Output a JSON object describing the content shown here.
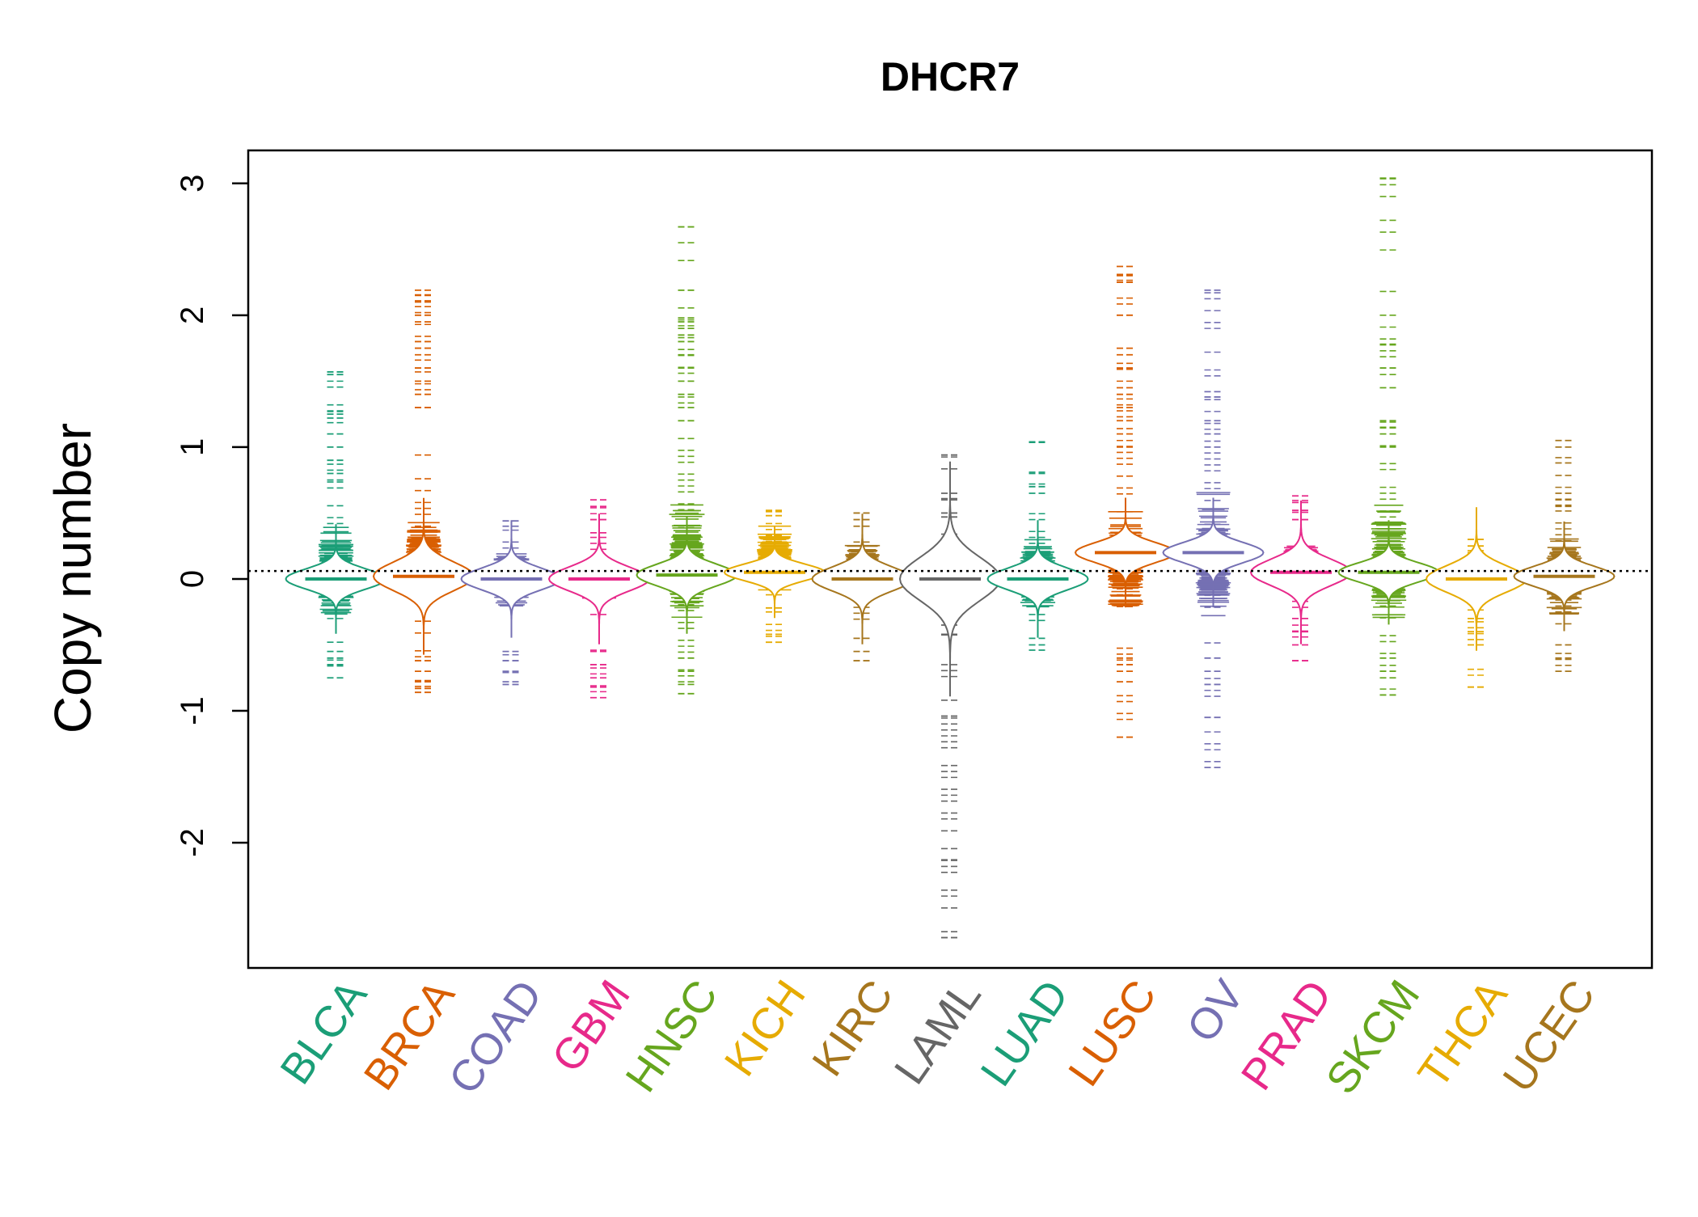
{
  "chart_data": {
    "type": "beanplot",
    "title": "DHCR7",
    "xlabel": "",
    "ylabel": "Copy number",
    "ylim": [
      -2.95,
      3.25
    ],
    "y_ticks": [
      -2,
      -1,
      0,
      1,
      2,
      3
    ],
    "y_tick_labels": [
      "-2",
      "-1",
      "0",
      "1",
      "2",
      "3"
    ],
    "reference_line": 0.06,
    "grid": false,
    "legend": "none",
    "categories": [
      "BLCA",
      "BRCA",
      "COAD",
      "GBM",
      "HNSC",
      "KICH",
      "KIRC",
      "LAML",
      "LUAD",
      "LUSC",
      "OV",
      "PRAD",
      "SKCM",
      "THCA",
      "UCEC"
    ],
    "series": [
      {
        "name": "BLCA",
        "color": "#1b9e77",
        "min": -0.75,
        "max": 1.57,
        "median": 0.0,
        "q1": -0.25,
        "q3": 0.38,
        "spread": 0.42,
        "outliers": [
          1.57,
          1.55,
          1.27,
          1.25,
          1.22,
          1.1,
          1.0,
          0.9,
          0.8,
          0.75,
          -0.55,
          -0.6,
          -0.65,
          -0.75
        ]
      },
      {
        "name": "BRCA",
        "color": "#d95f02",
        "min": -0.86,
        "max": 2.19,
        "median": 0.02,
        "q1": -0.15,
        "q3": 0.42,
        "spread": 0.6,
        "outliers": [
          2.19,
          2.15,
          2.1,
          2.0,
          1.95,
          1.8,
          1.75,
          1.7,
          1.6,
          1.5,
          1.4,
          1.3,
          -0.62,
          -0.7,
          -0.78,
          -0.83,
          -0.86
        ]
      },
      {
        "name": "COAD",
        "color": "#7570b3",
        "min": -0.8,
        "max": 0.44,
        "median": 0.0,
        "q1": -0.18,
        "q3": 0.2,
        "spread": 0.45,
        "outliers": [
          0.44,
          0.4,
          -0.55,
          -0.62,
          -0.7,
          -0.78,
          -0.8
        ]
      },
      {
        "name": "GBM",
        "color": "#e7298a",
        "min": -0.9,
        "max": 0.6,
        "median": 0.0,
        "q1": -0.12,
        "q3": 0.08,
        "spread": 0.5,
        "outliers": [
          0.6,
          0.55,
          0.45,
          0.35,
          -0.55,
          -0.65,
          -0.75,
          -0.82,
          -0.9
        ]
      },
      {
        "name": "HNSC",
        "color": "#66a61e",
        "min": -0.87,
        "max": 2.67,
        "median": 0.03,
        "q1": -0.25,
        "q3": 0.5,
        "spread": 0.45,
        "outliers": [
          2.67,
          2.19,
          1.98,
          1.95,
          1.9,
          1.85,
          1.8,
          1.7,
          1.6,
          1.5,
          1.4,
          1.3,
          1.2,
          -0.6,
          -0.7,
          -0.8,
          -0.87
        ]
      },
      {
        "name": "KICH",
        "color": "#e6ab02",
        "min": -0.48,
        "max": 0.52,
        "median": 0.05,
        "q1": -0.05,
        "q3": 0.35,
        "spread": 0.35,
        "outliers": [
          0.52,
          0.48,
          -0.22,
          -0.25,
          -0.42,
          -0.48
        ]
      },
      {
        "name": "KIRC",
        "color": "#a6761d",
        "min": -0.62,
        "max": 0.5,
        "median": 0.0,
        "q1": -0.1,
        "q3": 0.25,
        "spread": 0.5,
        "outliers": [
          0.5,
          0.45,
          0.4,
          -0.45,
          -0.55,
          -0.62
        ]
      },
      {
        "name": "LAML",
        "color": "#666666",
        "min": -2.72,
        "max": 0.94,
        "median": 0.0,
        "q1": -0.05,
        "q3": 0.08,
        "spread": 0.9,
        "outliers": [
          0.94,
          0.65,
          0.6,
          0.5,
          0.47,
          -0.35,
          -0.42,
          -1.04,
          -2.13,
          -2.72
        ]
      },
      {
        "name": "LUAD",
        "color": "#1b9e77",
        "min": -0.54,
        "max": 1.04,
        "median": 0.0,
        "q1": -0.2,
        "q3": 0.3,
        "spread": 0.45,
        "outliers": [
          1.04,
          0.8,
          0.7,
          0.65,
          -0.45,
          -0.5,
          -0.54
        ]
      },
      {
        "name": "LUSC",
        "color": "#d95f02",
        "min": -1.2,
        "max": 2.37,
        "median": 0.2,
        "q1": -0.25,
        "q3": 0.45,
        "spread": 0.42,
        "outliers": [
          2.37,
          2.3,
          2.25,
          2.0,
          1.75,
          1.7,
          1.6,
          1.45,
          1.4,
          1.3,
          1.2,
          1.1,
          1.0,
          -0.6,
          -0.65,
          -0.7,
          -0.78,
          -1.2
        ]
      },
      {
        "name": "OV",
        "color": "#7570b3",
        "min": -1.43,
        "max": 2.19,
        "median": 0.2,
        "q1": -0.3,
        "q3": 0.6,
        "spread": 0.42,
        "outliers": [
          2.19,
          1.42,
          1.38,
          1.2,
          1.1,
          1.0,
          -0.6,
          -0.7,
          -0.8,
          -1.05,
          -1.43
        ]
      },
      {
        "name": "PRAD",
        "color": "#e7298a",
        "min": -0.62,
        "max": 0.63,
        "median": 0.05,
        "q1": -0.02,
        "q3": 0.25,
        "spread": 0.55,
        "outliers": [
          0.63,
          0.58,
          0.52,
          0.45,
          -0.3,
          -0.4,
          -0.5,
          -0.62
        ]
      },
      {
        "name": "SKCM",
        "color": "#66a61e",
        "min": -0.88,
        "max": 3.04,
        "median": 0.05,
        "q1": -0.3,
        "q3": 0.5,
        "spread": 0.4,
        "outliers": [
          3.04,
          1.78,
          1.6,
          1.45,
          1.2,
          1.15,
          1.1,
          1.0,
          -0.6,
          -0.7,
          -0.75,
          -0.88
        ]
      },
      {
        "name": "THCA",
        "color": "#e6ab02",
        "min": -0.82,
        "max": 0.3,
        "median": 0.0,
        "q1": -0.05,
        "q3": 0.05,
        "spread": 0.55,
        "outliers": [
          0.3,
          0.25,
          0.2,
          -0.3,
          -0.4,
          -0.5,
          -0.82
        ]
      },
      {
        "name": "UCEC",
        "color": "#a6761d",
        "min": -0.7,
        "max": 1.05,
        "median": 0.02,
        "q1": -0.25,
        "q3": 0.27,
        "spread": 0.42,
        "outliers": [
          1.05,
          1.0,
          0.88,
          0.65,
          0.6,
          0.55,
          -0.5,
          -0.6,
          -0.7
        ]
      }
    ]
  }
}
